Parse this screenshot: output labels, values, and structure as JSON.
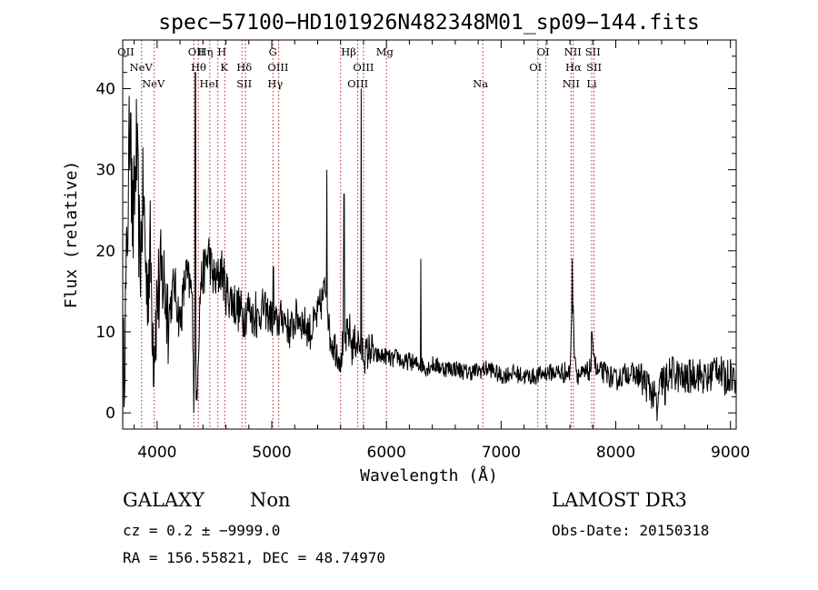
{
  "chart_data": {
    "type": "line",
    "title": "spec−57100−HD101926N482348M01_sp09−144.fits",
    "xlabel": "Wavelength (Å)",
    "ylabel": "Flux (relative)",
    "xlim": [
      3700,
      9050
    ],
    "ylim": [
      -2,
      46
    ],
    "xticks": [
      4000,
      5000,
      6000,
      7000,
      8000,
      9000
    ],
    "yticks": [
      0,
      10,
      20,
      30,
      40
    ],
    "series": [
      {
        "name": "spectrum",
        "x": [
          3700,
          3730,
          3760,
          3790,
          3820,
          3850,
          3880,
          3910,
          3940,
          3970,
          4000,
          4050,
          4100,
          4150,
          4200,
          4250,
          4300,
          4340,
          4380,
          4420,
          4450,
          4480,
          4520,
          4560,
          4600,
          4650,
          4700,
          4750,
          4800,
          4860,
          4920,
          4980,
          5040,
          5100,
          5160,
          5220,
          5280,
          5340,
          5400,
          5440,
          5480,
          5500,
          5520,
          5560,
          5600,
          5640,
          5680,
          5700,
          5740,
          5780,
          5820,
          5860,
          5900,
          5950,
          6000,
          6050,
          6100,
          6150,
          6200,
          6250,
          6300,
          6350,
          6400,
          6500,
          6600,
          6700,
          6800,
          6900,
          7000,
          7100,
          7200,
          7300,
          7400,
          7500,
          7560,
          7600,
          7620,
          7640,
          7660,
          7700,
          7760,
          7790,
          7800,
          7830,
          7900,
          8000,
          8100,
          8200,
          8300,
          8360,
          8400,
          8500,
          8600,
          8700,
          8800,
          8880,
          8950,
          9000,
          9050
        ],
        "y": [
          2,
          15,
          35,
          22,
          33,
          18,
          27,
          15,
          20,
          8,
          14,
          17,
          12,
          16,
          11,
          17,
          15,
          1,
          16,
          18,
          20,
          17,
          16,
          18,
          15,
          14,
          13,
          12,
          13,
          11,
          13,
          12,
          11,
          12,
          10,
          12,
          11,
          10,
          12,
          14,
          16,
          10,
          9,
          8,
          7,
          9,
          10,
          8,
          9,
          8,
          7,
          8,
          7,
          7,
          7,
          6.5,
          7,
          6,
          6.5,
          6,
          6,
          5.5,
          6,
          5.5,
          5.5,
          5,
          5.2,
          5.5,
          4.5,
          5,
          4.5,
          4.5,
          5,
          5,
          5,
          4.8,
          15,
          8,
          5,
          4.5,
          5,
          6,
          9,
          5,
          5,
          4,
          5,
          4.5,
          3,
          1,
          4,
          5,
          4,
          5,
          4,
          6,
          4,
          5,
          4
        ]
      }
    ],
    "peaks": [
      {
        "x": 3770,
        "y": 37
      },
      {
        "x": 4335,
        "y": 42
      },
      {
        "x": 4860,
        "y": 15
      },
      {
        "x": 5015,
        "y": 18
      },
      {
        "x": 5480,
        "y": 30
      },
      {
        "x": 5630,
        "y": 27
      },
      {
        "x": 5780,
        "y": 40
      },
      {
        "x": 6300,
        "y": 19
      },
      {
        "x": 7620,
        "y": 19
      },
      {
        "x": 7790,
        "y": 10
      }
    ],
    "troughs": [
      {
        "x": 4320,
        "y": 0
      },
      {
        "x": 5600,
        "y": 5
      },
      {
        "x": 8360,
        "y": -1
      },
      {
        "x": 8430,
        "y": 1
      }
    ],
    "emission_lines": [
      {
        "label": "OII",
        "row": 1,
        "x": 3727
      },
      {
        "label": "NeV",
        "row": 2,
        "x": 3860
      },
      {
        "label": "NeV",
        "row": 3,
        "x": 3967
      },
      {
        "label": "OII",
        "row": 1,
        "x": 4342
      },
      {
        "label": "Hη",
        "row": 1,
        "x": 4421
      },
      {
        "label": "H",
        "row": 1,
        "x": 4565
      },
      {
        "label": "Hθ",
        "row": 2,
        "x": 4362
      },
      {
        "label": "K",
        "row": 2,
        "x": 4585
      },
      {
        "label": "HeI",
        "row": 3,
        "x": 4455
      },
      {
        "label": "Hδ",
        "row": 2,
        "x": 4760
      },
      {
        "label": "SII",
        "row": 3,
        "x": 4760
      },
      {
        "label": "G",
        "row": 1,
        "x": 5010
      },
      {
        "label": "OIII",
        "row": 2,
        "x": 5055
      },
      {
        "label": "Hγ",
        "row": 3,
        "x": 5030
      },
      {
        "label": "Hβ",
        "row": 1,
        "x": 5670
      },
      {
        "label": "OIII",
        "row": 2,
        "x": 5800
      },
      {
        "label": "OIII",
        "row": 3,
        "x": 5750
      },
      {
        "label": "Mg",
        "row": 1,
        "x": 5985
      },
      {
        "label": "Na",
        "row": 3,
        "x": 6820
      },
      {
        "label": "OI",
        "row": 1,
        "x": 7367
      },
      {
        "label": "OI",
        "row": 2,
        "x": 7300
      },
      {
        "label": "NII",
        "row": 1,
        "x": 7625
      },
      {
        "label": "Hα",
        "row": 2,
        "x": 7630
      },
      {
        "label": "NII",
        "row": 3,
        "x": 7610
      },
      {
        "label": "SII",
        "row": 1,
        "x": 7800
      },
      {
        "label": "SII",
        "row": 2,
        "x": 7810
      },
      {
        "label": "Li",
        "row": 3,
        "x": 7790
      }
    ],
    "marker_lines_x": [
      3865,
      3975,
      4320,
      4360,
      4460,
      4530,
      4590,
      4740,
      4770,
      5010,
      5060,
      5600,
      5750,
      5800,
      6000,
      6840,
      7320,
      7390,
      7610,
      7630,
      7790,
      7810
    ]
  },
  "info": {
    "class": "GALAXY",
    "subclass": "Non",
    "survey": "LAMOST DR3",
    "cz": "cz = 0.2 ± −9999.0",
    "obs_date": "Obs-Date: 20150318",
    "coords": "RA = 156.55821, DEC =  48.74970"
  }
}
